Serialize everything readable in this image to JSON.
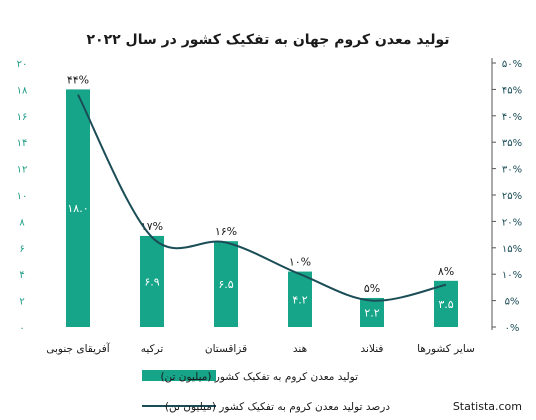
{
  "chart_data": {
    "type": "bar",
    "title": "تولید معدن کروم جهان به تفکیک کشور در سال ۲۰۲۲",
    "categories": [
      "آفریقای جنوبی",
      "ترکیه",
      "قزاقستان",
      "هند",
      "فنلاند",
      "سایر کشورها"
    ],
    "series": [
      {
        "name": "تولید معدن کروم به تفکیک کشور (میلیون تن)",
        "type": "bar",
        "axis": "left",
        "values": [
          18.0,
          6.9,
          6.5,
          4.2,
          2.2,
          3.5
        ],
        "labels": [
          "۱۸.۰",
          "۶.۹",
          "۶.۵",
          "۴.۲",
          "۲.۲",
          "۳.۵"
        ],
        "color": "#17a589"
      },
      {
        "name": "درصد تولید معدن کروم به تفکیک کشور (میلیون تن)",
        "type": "line",
        "axis": "right",
        "values": [
          44,
          17,
          16,
          10,
          5,
          8
        ],
        "labels": [
          "۴۴%",
          "۱۷%",
          "۱۶%",
          "۱۰%",
          "۵%",
          "۸%"
        ],
        "color": "#1b4d57"
      }
    ],
    "left_axis": {
      "ylim": [
        0,
        20
      ],
      "ticks": [
        0,
        2,
        4,
        6,
        8,
        10,
        12,
        14,
        16,
        18,
        20
      ],
      "tick_labels": [
        "۰",
        "۲",
        "۴",
        "۶",
        "۸",
        "۱۰",
        "۱۲",
        "۱۴",
        "۱۶",
        "۱۸",
        "۲۰"
      ]
    },
    "right_axis": {
      "ylim": [
        0,
        50
      ],
      "ticks": [
        0,
        5,
        10,
        15,
        20,
        25,
        30,
        35,
        40,
        45,
        50
      ],
      "tick_labels": [
        "۰%",
        "۵%",
        "۱۰%",
        "۱۵%",
        "۲۰%",
        "۲۵%",
        "۳۰%",
        "۳۵%",
        "۴۰%",
        "۴۵%",
        "۵۰%"
      ]
    },
    "grid": false,
    "legend_position": "bottom"
  },
  "source": "Statista.com"
}
